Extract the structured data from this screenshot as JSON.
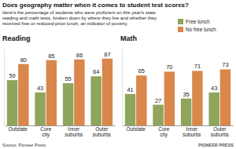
{
  "title": "Does geography matter when it comes to student test scores?",
  "subtitle": "Here's the percentage of students who were proficient on this year's state reading and math tests, broken down by where they live and whether they received free or reduced-price lunch, an indicator of poverty.",
  "source": "Source: Pioneer Press",
  "credit": "PIONEER PRESS",
  "chart_data": [
    {
      "type": "bar",
      "title": "Reading",
      "categories": [
        "Outstate",
        "Core city",
        "Inner suburbs",
        "Outer suburbs"
      ],
      "series": [
        {
          "name": "Free lunch",
          "color": "#8ea55b",
          "values": [
            59,
            43,
            55,
            64
          ]
        },
        {
          "name": "No free lunch",
          "color": "#d9874b",
          "values": [
            80,
            85,
            86,
            87
          ]
        }
      ],
      "ylim": [
        0,
        100
      ],
      "data_labels": true,
      "tick_labels": "x",
      "legend": "top-right"
    },
    {
      "type": "bar",
      "title": "Math",
      "categories": [
        "Outstate",
        "Core city",
        "Inner suburbs",
        "Outer suburbs"
      ],
      "series": [
        {
          "name": "Free lunch",
          "color": "#8ea55b",
          "values": [
            41,
            27,
            35,
            43
          ]
        },
        {
          "name": "No free lunch",
          "color": "#d9874b",
          "values": [
            65,
            70,
            71,
            73
          ]
        }
      ],
      "ylim": [
        0,
        100
      ],
      "data_labels": true,
      "tick_labels": "x"
    }
  ]
}
